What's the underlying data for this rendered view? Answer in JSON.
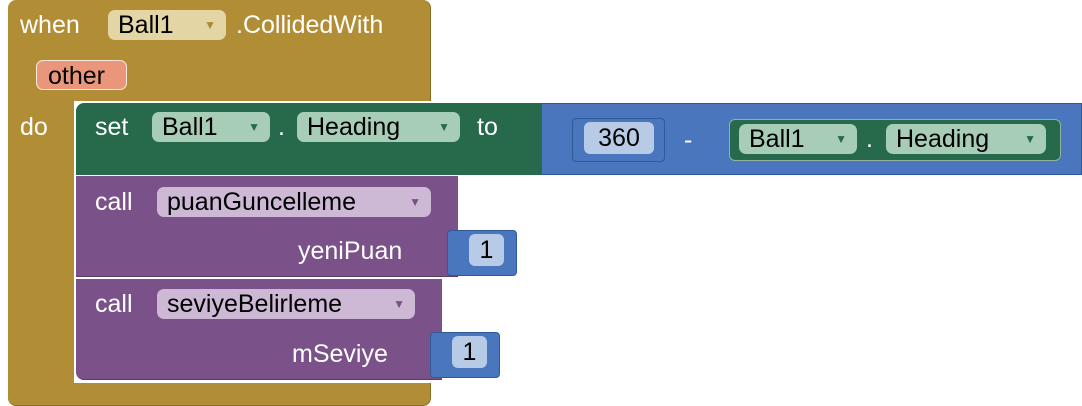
{
  "event": {
    "when_label": "when",
    "component": "Ball1",
    "event_name": ".CollidedWith",
    "param": "other",
    "do_label": "do"
  },
  "set_block": {
    "set_label": "set",
    "component": "Ball1",
    "dot": ".",
    "property": "Heading",
    "to_label": "to"
  },
  "math_block": {
    "left_value": "360",
    "operator": "-",
    "getter": {
      "component": "Ball1",
      "dot": ".",
      "property": "Heading"
    }
  },
  "calls": [
    {
      "call_label": "call",
      "procedure": "puanGuncelleme",
      "arg_name": "yeniPuan",
      "arg_value": "1"
    },
    {
      "call_label": "call",
      "procedure": "seviyeBelirleme",
      "arg_name": "mSeviye",
      "arg_value": "1"
    }
  ],
  "colors": {
    "event": "#b18e35",
    "setter": "#266a4b",
    "math": "#4a76bd",
    "procedure": "#7b518a",
    "param": "#e9967a"
  },
  "icons": {
    "dropdown": "triangle-down"
  }
}
